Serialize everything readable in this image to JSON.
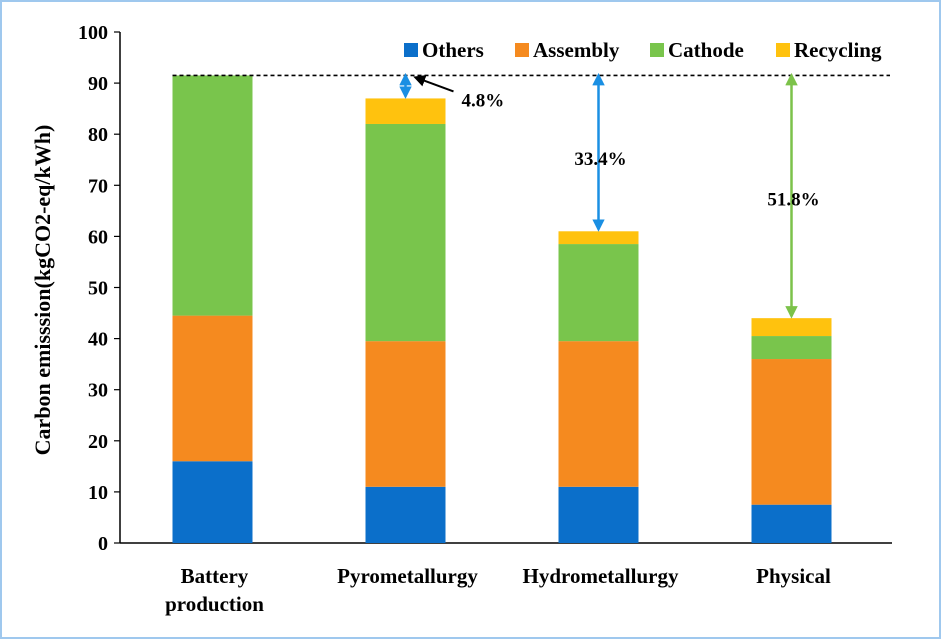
{
  "chart_data": {
    "type": "bar",
    "stacked": true,
    "categories": [
      "Battery production",
      "Pyrometallurgy",
      "Hydrometallurgy",
      "Physical"
    ],
    "category_lines": [
      [
        "Battery",
        "production"
      ],
      [
        "Pyrometallurgy"
      ],
      [
        "Hydrometallurgy"
      ],
      [
        "Physical"
      ]
    ],
    "series": [
      {
        "name": "Others",
        "color": "#0b6fca",
        "values": [
          16,
          11,
          11,
          7.5
        ]
      },
      {
        "name": "Assembly",
        "color": "#f58a1f",
        "values": [
          28.5,
          28.5,
          28.5,
          28.5
        ]
      },
      {
        "name": "Cathode",
        "color": "#79c54c",
        "values": [
          47,
          42.5,
          19,
          4.5
        ]
      },
      {
        "name": "Recycling",
        "color": "#ffc20e",
        "values": [
          0,
          5,
          2.5,
          3.5
        ]
      }
    ],
    "ylabel": "Carbon emisssion(kgCO2-eq/kWh)",
    "xlabel": "",
    "ylim": [
      0,
      100
    ],
    "yticks": [
      0,
      10,
      20,
      30,
      40,
      50,
      60,
      70,
      80,
      90,
      100
    ],
    "reference_line": 91.5,
    "legend_position": "top-right",
    "annotations": [
      {
        "label": "4.8%",
        "category_index": 1,
        "color": "#1a8fe3"
      },
      {
        "label": "33.4%",
        "category_index": 2,
        "color": "#1a8fe3"
      },
      {
        "label": "51.8%",
        "category_index": 3,
        "color": "#7cc24a"
      }
    ]
  }
}
